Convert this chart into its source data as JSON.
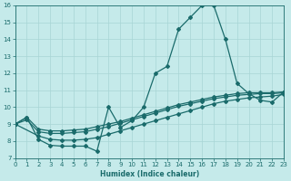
{
  "xlabel": "Humidex (Indice chaleur)",
  "xlim": [
    0,
    23
  ],
  "ylim": [
    7,
    16
  ],
  "xticks": [
    0,
    1,
    2,
    3,
    4,
    5,
    6,
    7,
    8,
    9,
    10,
    11,
    12,
    13,
    14,
    15,
    16,
    17,
    18,
    19,
    20,
    21,
    22,
    23
  ],
  "yticks": [
    7,
    8,
    9,
    10,
    11,
    12,
    13,
    14,
    15,
    16
  ],
  "bg_color": "#c5eaea",
  "grid_color": "#a8d5d5",
  "line_color": "#1a6b6b",
  "line1_x": [
    0,
    1,
    2,
    3,
    4,
    5,
    6,
    7,
    8,
    9,
    10,
    11,
    12,
    13,
    14,
    15,
    16,
    17,
    18,
    19,
    20,
    21,
    22,
    23
  ],
  "line1_y": [
    9.0,
    9.4,
    8.1,
    7.75,
    7.7,
    7.7,
    7.7,
    7.4,
    10.0,
    8.8,
    9.2,
    10.0,
    12.0,
    12.4,
    14.6,
    15.3,
    16.0,
    16.0,
    14.0,
    11.4,
    10.8,
    10.4,
    10.3,
    10.9
  ],
  "line2_x": [
    0,
    2,
    3,
    4,
    5,
    6,
    7,
    8,
    9,
    10,
    11,
    12,
    13,
    14,
    15,
    16,
    17,
    18,
    19,
    20,
    21,
    22,
    23
  ],
  "line2_y": [
    9.0,
    8.3,
    8.1,
    8.05,
    8.05,
    8.1,
    8.2,
    8.4,
    8.6,
    8.8,
    9.0,
    9.2,
    9.4,
    9.6,
    9.8,
    10.0,
    10.2,
    10.35,
    10.45,
    10.55,
    10.6,
    10.65,
    10.75
  ],
  "line3_x": [
    0,
    1,
    2,
    3,
    4,
    5,
    6,
    7,
    8,
    9,
    10,
    11,
    12,
    13,
    14,
    15,
    16,
    17,
    18,
    19,
    20,
    21,
    22,
    23
  ],
  "line3_y": [
    9.0,
    9.25,
    8.55,
    8.45,
    8.45,
    8.5,
    8.55,
    8.7,
    8.85,
    9.05,
    9.25,
    9.45,
    9.65,
    9.85,
    10.05,
    10.2,
    10.35,
    10.5,
    10.6,
    10.7,
    10.75,
    10.8,
    10.8,
    10.85
  ],
  "line4_x": [
    0,
    1,
    2,
    3,
    4,
    5,
    6,
    7,
    8,
    9,
    10,
    11,
    12,
    13,
    14,
    15,
    16,
    17,
    18,
    19,
    20,
    21,
    22,
    23
  ],
  "line4_y": [
    9.0,
    9.4,
    8.7,
    8.6,
    8.6,
    8.65,
    8.7,
    8.85,
    9.0,
    9.15,
    9.35,
    9.55,
    9.75,
    9.95,
    10.15,
    10.3,
    10.45,
    10.6,
    10.7,
    10.8,
    10.85,
    10.85,
    10.85,
    10.9
  ]
}
